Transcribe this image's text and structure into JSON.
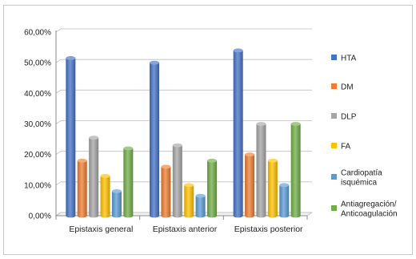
{
  "chart_data": {
    "type": "bar",
    "title": "",
    "xlabel": "",
    "ylabel": "",
    "ylim": [
      0,
      0.6
    ],
    "yticks": [
      "0,00%",
      "10,00%",
      "20,00%",
      "30,00%",
      "40,00%",
      "50,00%",
      "60,00%"
    ],
    "grid": true,
    "legend_position": "right",
    "categories": [
      "Epistaxis general",
      "Epistaxis anterior",
      "Epistaxis posterior"
    ],
    "series": [
      {
        "name": "HTA",
        "color": "#4472C4",
        "values": [
          0.515,
          0.5,
          0.54
        ]
      },
      {
        "name": "DM",
        "color": "#ED7D31",
        "values": [
          0.18,
          0.16,
          0.2
        ]
      },
      {
        "name": "DLP",
        "color": "#A5A5A5",
        "values": [
          0.255,
          0.23,
          0.3
        ]
      },
      {
        "name": "FA",
        "color": "#FFC000",
        "values": [
          0.13,
          0.1,
          0.18
        ]
      },
      {
        "name_lines": [
          "Cardiopatía",
          "isquémica"
        ],
        "color": "#5B9BD5",
        "values": [
          0.08,
          0.065,
          0.1
        ]
      },
      {
        "name_lines": [
          "Antiagregación/",
          "Anticoagulación"
        ],
        "color": "#70AD47",
        "values": [
          0.22,
          0.18,
          0.3
        ]
      }
    ]
  }
}
